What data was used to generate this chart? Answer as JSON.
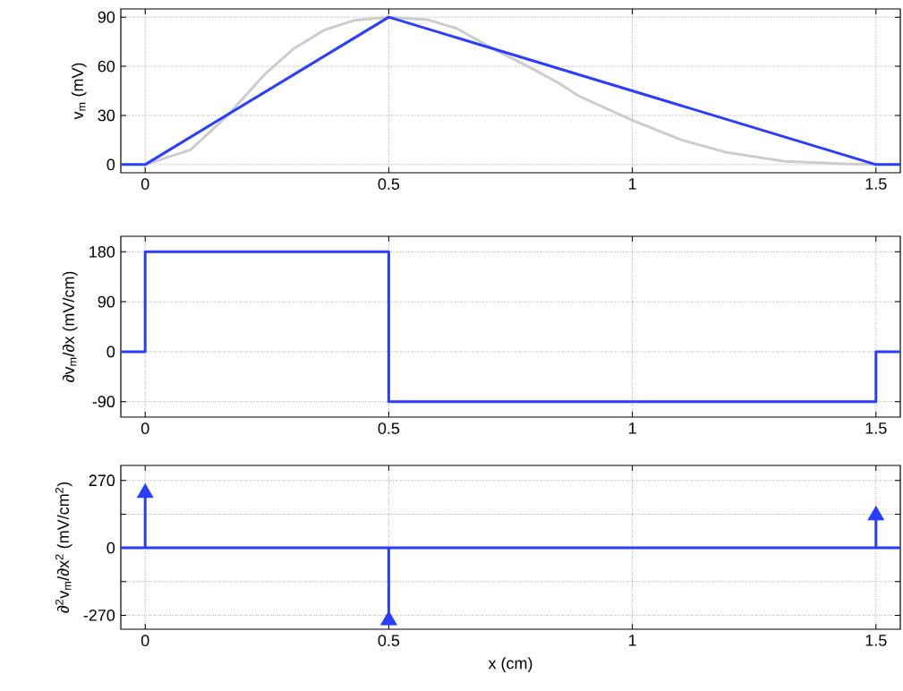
{
  "chart_data": [
    {
      "type": "line",
      "ylabel": "v$_{m}$ (mV)",
      "xlim": [
        -0.05,
        1.55
      ],
      "ylim": [
        -5,
        95
      ],
      "xticks": [
        0,
        0.5,
        1,
        1.5
      ],
      "yticks": [
        0,
        30,
        60,
        90
      ],
      "grid": true,
      "series": [
        {
          "color": "#cccccc",
          "x": [
            0,
            0.093,
            0.166,
            0.245,
            0.306,
            0.367,
            0.428,
            0.5,
            0.579,
            0.64,
            0.725,
            0.792,
            0.853,
            0.889,
            1.0,
            1.101,
            1.192,
            1.313,
            1.435,
            1.5
          ],
          "values": [
            0,
            9,
            29,
            55,
            71,
            82,
            88,
            90,
            88.5,
            83,
            69,
            59,
            49,
            42,
            27,
            15,
            7.5,
            2,
            0.4,
            0
          ]
        },
        {
          "color": "#2a3cff",
          "x": [
            -0.05,
            0,
            0.5,
            1.5,
            1.55
          ],
          "values": [
            0,
            0,
            90,
            0,
            0
          ]
        }
      ]
    },
    {
      "type": "step",
      "ylabel": "∂v$_{m}$/∂x (mV/cm)",
      "xlim": [
        -0.05,
        1.55
      ],
      "ylim": [
        -118,
        208
      ],
      "xticks": [
        0,
        0.5,
        1,
        1.5
      ],
      "yticks": [
        -90,
        0,
        90,
        180
      ],
      "grid": true,
      "series": [
        {
          "color": "#2a3cff",
          "x": [
            -0.05,
            0,
            0.5,
            1.5,
            1.55
          ],
          "values": [
            0,
            180,
            -90,
            0,
            0
          ]
        }
      ]
    },
    {
      "type": "line",
      "ylabel": "∂$^{2}$v$_{m}$/∂x$^{2}$ (mV/cm$^{2}$)",
      "xlabel": "x (cm)",
      "xlim": [
        -0.05,
        1.55
      ],
      "ylim": [
        -326,
        330
      ],
      "xticks": [
        0,
        0.5,
        1,
        1.5
      ],
      "yticks": [
        -270,
        {
          "value": -135,
          "label": null
        },
        0,
        {
          "value": 135,
          "label": null
        },
        270
      ],
      "grid": true,
      "series": [
        {
          "color": "#2a3cff",
          "x": [
            -0.05,
            1.55
          ],
          "values": [
            0,
            0
          ]
        },
        {
          "type": "lollipop",
          "color": "#2a3cff",
          "x": [
            0,
            0.5,
            1.5
          ],
          "values": [
            220,
            -290,
            130
          ]
        }
      ]
    }
  ]
}
